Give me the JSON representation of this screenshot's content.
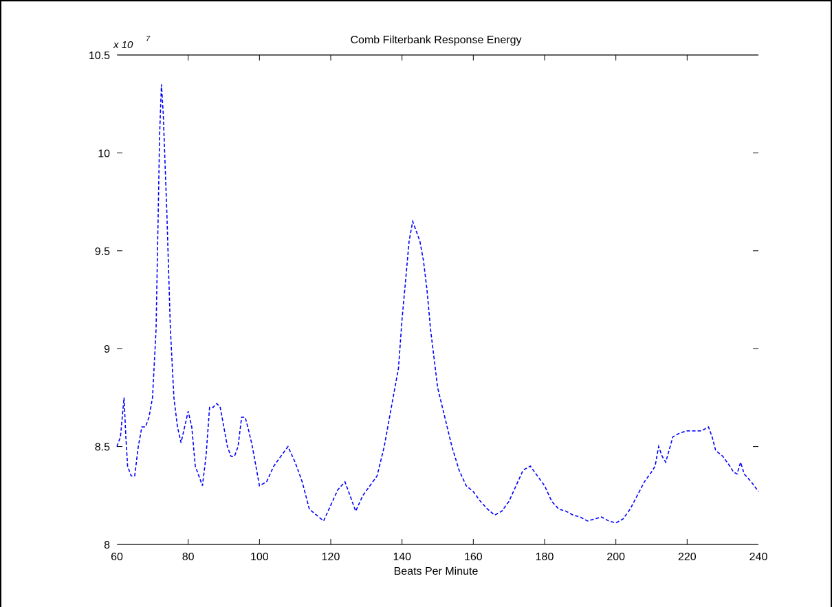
{
  "chart_data": {
    "type": "line",
    "title": "Comb Filterbank Response Energy",
    "xlabel": "Beats Per Minute",
    "ylabel": "",
    "xlim": [
      60,
      240
    ],
    "ylim": [
      8,
      10.5
    ],
    "y_exponent_label": "x 10",
    "y_exponent": "7",
    "xticks": [
      60,
      80,
      100,
      120,
      140,
      160,
      180,
      200,
      220,
      240
    ],
    "xtick_labels": [
      "60",
      "80",
      "100",
      "120",
      "140",
      "160",
      "180",
      "200",
      "220",
      "240"
    ],
    "yticks": [
      8,
      8.5,
      9,
      9.5,
      10,
      10.5
    ],
    "ytick_labels": [
      "8",
      "8.5",
      "9",
      "9.5",
      "10",
      "10.5"
    ],
    "grid": false,
    "series": [
      {
        "color": "#0000ff",
        "line_style": "dashed",
        "x": [
          60,
          61,
          62,
          62.5,
          63,
          64,
          65,
          66,
          67,
          68,
          69,
          70,
          71,
          71.5,
          72,
          72.5,
          73,
          74,
          75,
          76,
          77,
          78,
          79,
          80,
          81,
          82,
          83,
          84,
          85,
          86,
          87,
          88,
          89,
          90,
          91,
          92,
          93,
          94,
          95,
          96,
          97,
          98,
          100,
          102,
          104,
          106,
          108,
          110,
          112,
          114,
          116,
          118,
          120,
          122,
          124,
          126,
          127,
          129,
          131,
          133,
          135,
          137,
          139,
          140,
          141,
          142,
          143,
          144,
          145,
          146,
          147,
          148,
          149,
          150,
          152,
          154,
          156,
          158,
          160,
          162,
          164,
          166,
          168,
          170,
          172,
          174,
          176,
          178,
          180,
          182,
          184,
          186,
          188,
          190,
          192,
          194,
          196,
          198,
          200,
          202,
          204,
          206,
          208,
          210,
          211,
          212,
          213,
          214,
          216,
          218,
          220,
          222,
          224,
          226,
          227,
          228,
          230,
          232,
          233,
          234,
          235,
          236,
          238,
          240
        ],
        "y": [
          8.5,
          8.55,
          8.75,
          8.55,
          8.4,
          8.35,
          8.35,
          8.5,
          8.6,
          8.6,
          8.65,
          8.75,
          9.1,
          9.6,
          10.1,
          10.35,
          10.2,
          9.7,
          9.1,
          8.75,
          8.6,
          8.52,
          8.6,
          8.68,
          8.6,
          8.4,
          8.35,
          8.3,
          8.45,
          8.7,
          8.7,
          8.72,
          8.7,
          8.6,
          8.5,
          8.45,
          8.45,
          8.5,
          8.65,
          8.65,
          8.58,
          8.5,
          8.3,
          8.32,
          8.4,
          8.45,
          8.5,
          8.42,
          8.32,
          8.18,
          8.15,
          8.12,
          8.2,
          8.28,
          8.32,
          8.22,
          8.17,
          8.25,
          8.3,
          8.35,
          8.5,
          8.7,
          8.9,
          9.15,
          9.35,
          9.55,
          9.65,
          9.6,
          9.55,
          9.45,
          9.3,
          9.1,
          8.95,
          8.8,
          8.65,
          8.5,
          8.38,
          8.3,
          8.27,
          8.22,
          8.18,
          8.15,
          8.17,
          8.22,
          8.3,
          8.38,
          8.4,
          8.35,
          8.3,
          8.22,
          8.18,
          8.17,
          8.15,
          8.14,
          8.12,
          8.13,
          8.14,
          8.12,
          8.11,
          8.13,
          8.18,
          8.25,
          8.32,
          8.37,
          8.4,
          8.5,
          8.45,
          8.42,
          8.55,
          8.57,
          8.58,
          8.58,
          8.58,
          8.6,
          8.55,
          8.48,
          8.45,
          8.4,
          8.37,
          8.36,
          8.42,
          8.36,
          8.32,
          8.27
        ]
      }
    ]
  }
}
